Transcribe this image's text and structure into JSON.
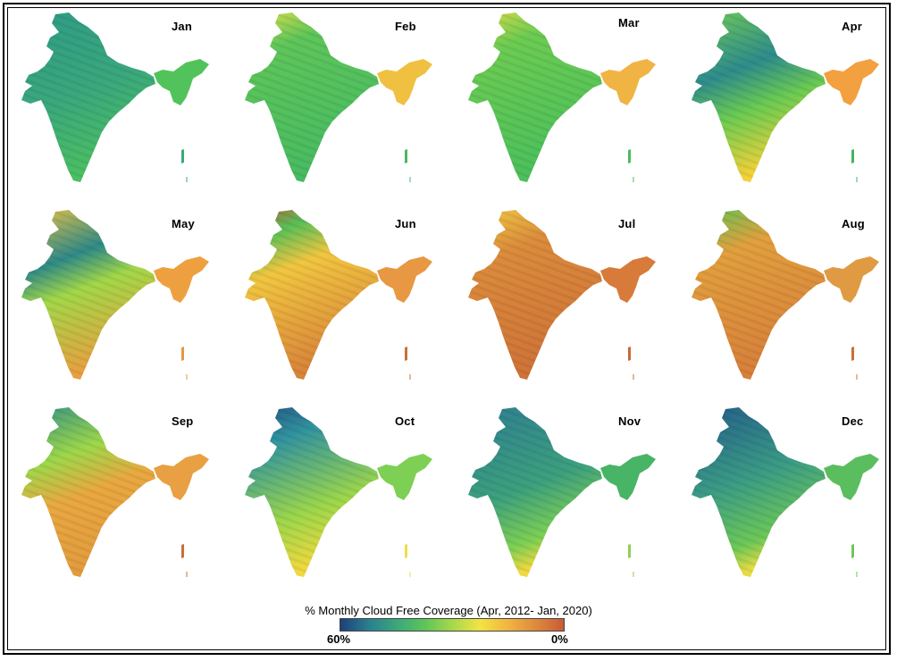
{
  "map": {
    "months": [
      {
        "name": "Jan",
        "grad": [
          [
            "0",
            "#2f9b86"
          ],
          [
            "0.55",
            "#3aa87d"
          ],
          [
            "1",
            "#4cbf63"
          ]
        ],
        "ne": "#52c35a",
        "island": "#3aa877"
      },
      {
        "name": "Feb",
        "grad": [
          [
            "0",
            "#e6e04a"
          ],
          [
            "0.25",
            "#5ec65a"
          ],
          [
            "1",
            "#48bb62"
          ]
        ],
        "ne": "#f0c040",
        "island": "#48b862"
      },
      {
        "name": "Mar",
        "grad": [
          [
            "0",
            "#e0dc48"
          ],
          [
            "0.25",
            "#6ccc52"
          ],
          [
            "1",
            "#4cc05c"
          ]
        ],
        "ne": "#f0b444",
        "island": "#4bbc5e"
      },
      {
        "name": "Apr",
        "grad": [
          [
            "0",
            "#6fcc56"
          ],
          [
            "0.4",
            "#2e8c8c"
          ],
          [
            "0.65",
            "#6ccc52"
          ],
          [
            "1",
            "#f4d238"
          ]
        ],
        "ne": "#f3a040",
        "island": "#44b462"
      },
      {
        "name": "May",
        "grad": [
          [
            "0",
            "#f0c444"
          ],
          [
            "0.35",
            "#2f8a88"
          ],
          [
            "0.55",
            "#a2d848"
          ],
          [
            "1",
            "#e8a040"
          ]
        ],
        "ne": "#eea040",
        "island": "#e49844"
      },
      {
        "name": "Jun",
        "grad": [
          [
            "0",
            "#c4583a"
          ],
          [
            "0.18",
            "#58c058"
          ],
          [
            "0.4",
            "#f2c640"
          ],
          [
            "1",
            "#d8843a"
          ]
        ],
        "ne": "#e89842",
        "island": "#c87038"
      },
      {
        "name": "Jul",
        "grad": [
          [
            "0",
            "#f0cc44"
          ],
          [
            "0.3",
            "#dc8c3c"
          ],
          [
            "1",
            "#cf7338"
          ]
        ],
        "ne": "#d87a3a",
        "island": "#c66a38"
      },
      {
        "name": "Aug",
        "grad": [
          [
            "0",
            "#5cc456"
          ],
          [
            "0.3",
            "#e2a03e"
          ],
          [
            "1",
            "#d7803a"
          ]
        ],
        "ne": "#e09a42",
        "island": "#c87038"
      },
      {
        "name": "Sep",
        "grad": [
          [
            "0",
            "#2f8e88"
          ],
          [
            "0.35",
            "#9ed84a"
          ],
          [
            "0.6",
            "#eaa840"
          ],
          [
            "1",
            "#e29c3e"
          ]
        ],
        "ne": "#e8a042",
        "island": "#c87038"
      },
      {
        "name": "Oct",
        "grad": [
          [
            "0",
            "#234f80"
          ],
          [
            "0.25",
            "#3294a0"
          ],
          [
            "0.7",
            "#9ed84a"
          ],
          [
            "1",
            "#f2d83e"
          ]
        ],
        "ne": "#7ed054",
        "island": "#f2dc4a"
      },
      {
        "name": "Nov",
        "grad": [
          [
            "0",
            "#2f7e92"
          ],
          [
            "0.55",
            "#3ca07e"
          ],
          [
            "0.85",
            "#7ed054"
          ],
          [
            "1",
            "#f2d83e"
          ]
        ],
        "ne": "#48b466",
        "island": "#8ed050"
      },
      {
        "name": "Dec",
        "grad": [
          [
            "0",
            "#235c8a"
          ],
          [
            "0.5",
            "#3b9c86"
          ],
          [
            "0.85",
            "#6cc858"
          ],
          [
            "1",
            "#e8dc44"
          ]
        ],
        "ne": "#5abe5e",
        "island": "#6cc858"
      }
    ]
  },
  "legend": {
    "title": "% Monthly Cloud Free Coverage (Apr, 2012- Jan, 2020)",
    "min_label": "60%",
    "max_label": "0%",
    "colors": [
      "#1f3f7a",
      "#2a7e8f",
      "#3aa67c",
      "#5cc45a",
      "#a6d84a",
      "#f2e442",
      "#f2b442",
      "#de8a3c",
      "#c85a38"
    ]
  }
}
